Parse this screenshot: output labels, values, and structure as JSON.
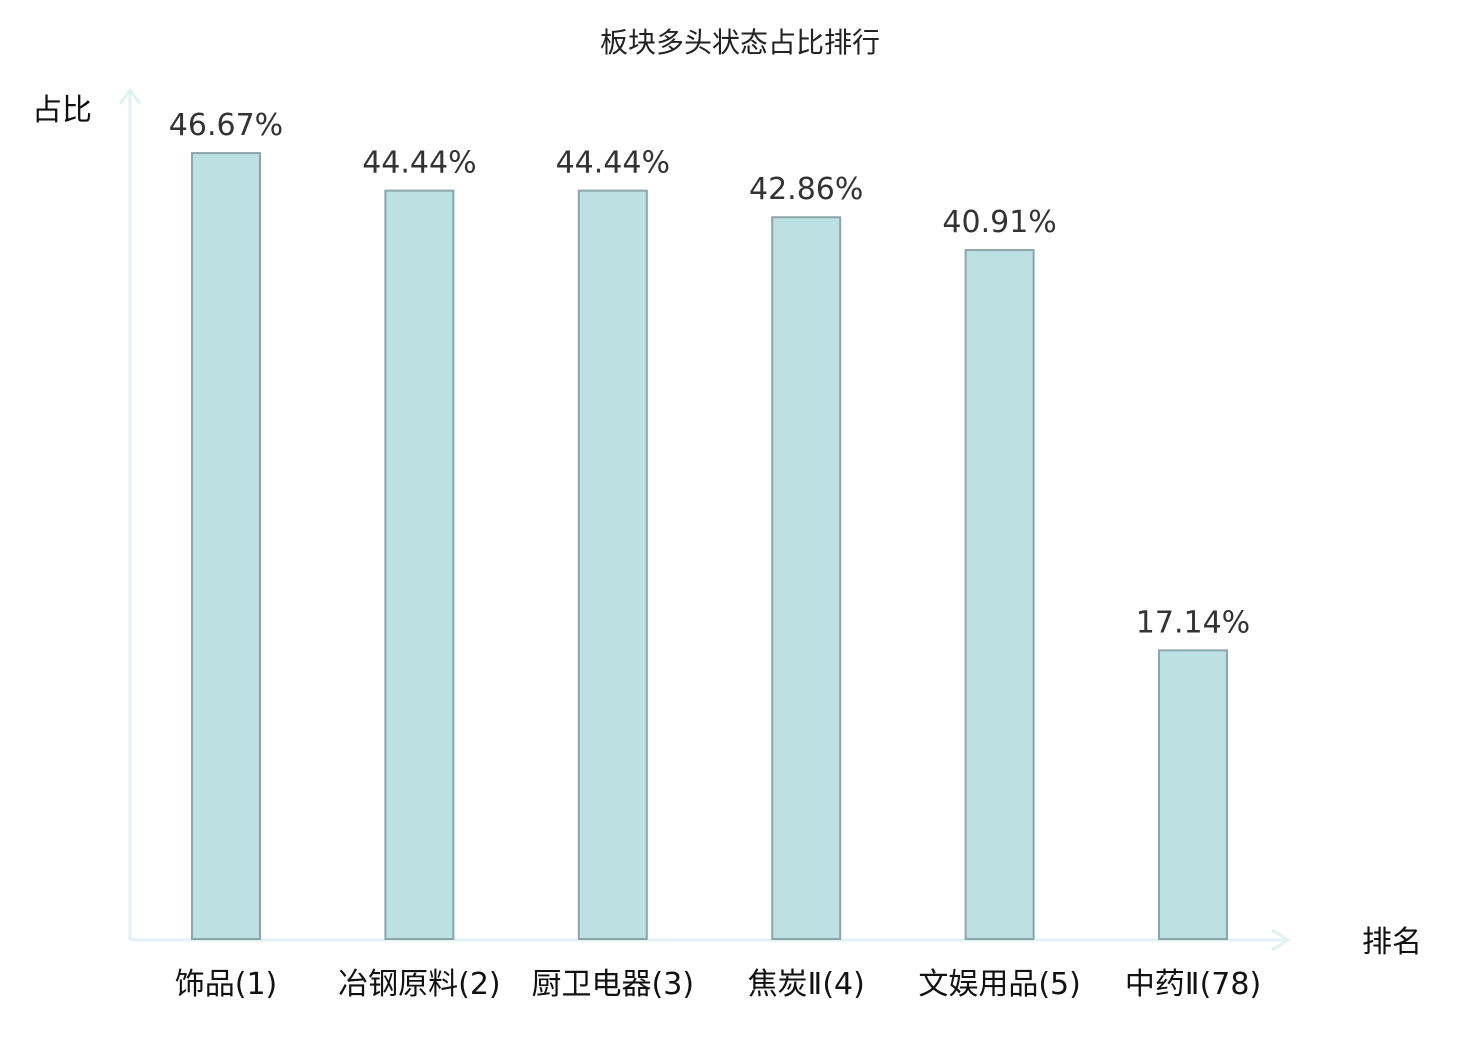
{
  "chart_data": {
    "type": "bar",
    "title": "板块多头状态占比排行",
    "ylabel": "占比",
    "xlabel": "排名",
    "categories": [
      "饰品(1)",
      "冶钢原料(2)",
      "厨卫电器(3)",
      "焦炭Ⅱ(4)",
      "文娱用品(5)",
      "中药Ⅱ(78)"
    ],
    "values": [
      46.67,
      44.44,
      44.44,
      42.86,
      40.91,
      17.14
    ],
    "value_labels": [
      "46.67%",
      "44.44%",
      "44.44%",
      "42.86%",
      "40.91%",
      "17.14%"
    ],
    "highlight_index": 5,
    "ylim": [
      0,
      50
    ],
    "grid": false,
    "legend": "none",
    "colors": {
      "bar_fill": "#bde0e3",
      "bar_stroke": "#8aa6a8",
      "axis": "#e0f2f1",
      "highlight_label": "#e02020",
      "text": "#111111"
    }
  }
}
